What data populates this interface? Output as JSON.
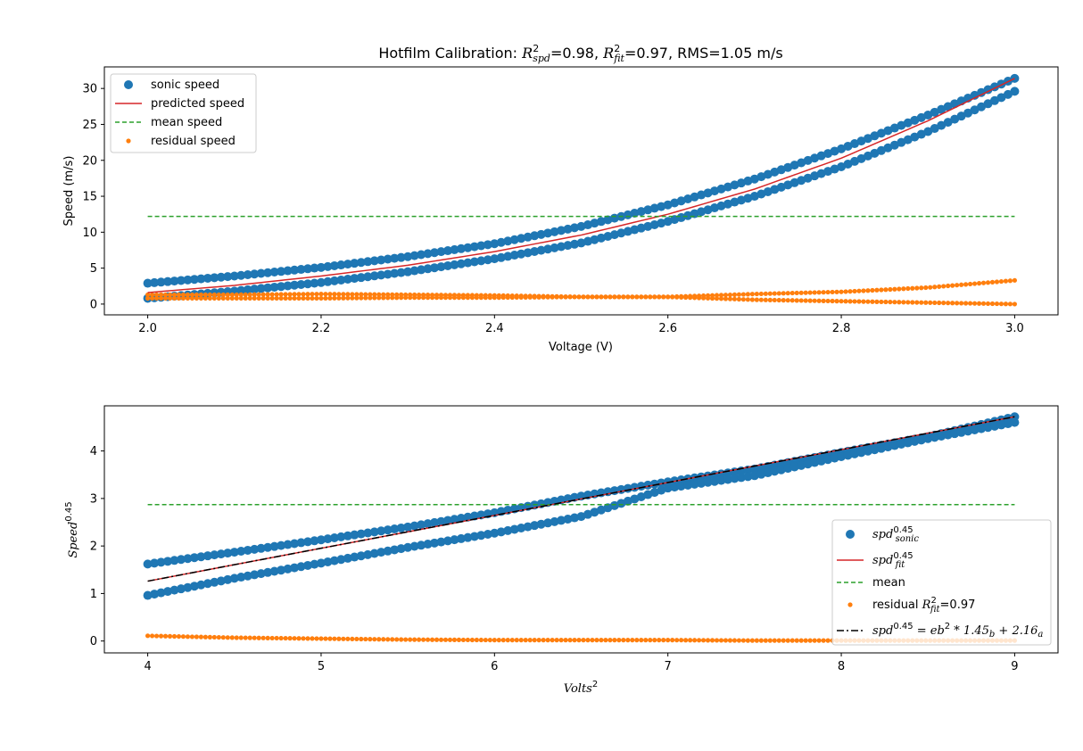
{
  "chart_data": [
    {
      "type": "scatter",
      "title": {
        "prefix": "Hotfilm Calibration: ",
        "r2spd_sym": "R",
        "r2spd_sup": "2",
        "r2spd_sub": "spd",
        "r2spd_val": "=0.98, ",
        "r2fit_sym": "R",
        "r2fit_sup": "2",
        "r2fit_sub": "fit",
        "r2fit_val": "=0.97, RMS=1.05 m/s"
      },
      "xlabel": "Voltage (V)",
      "ylabel": "Speed (m/s)",
      "xlim": [
        1.95,
        3.05
      ],
      "ylim": [
        -1.5,
        33
      ],
      "xticks": [
        2.0,
        2.2,
        2.4,
        2.6,
        2.8,
        3.0
      ],
      "xtick_labels": [
        "2.0",
        "2.2",
        "2.4",
        "2.6",
        "2.8",
        "3.0"
      ],
      "yticks": [
        0,
        5,
        10,
        15,
        20,
        25,
        30
      ],
      "ytick_labels": [
        "0",
        "5",
        "10",
        "15",
        "20",
        "25",
        "30"
      ],
      "legend_position": "top-left",
      "series": [
        {
          "name": "sonic speed",
          "kind": "scatter-large",
          "color": "#1f77b4",
          "branches": [
            {
              "x": [
                2.0,
                2.1,
                2.2,
                2.3,
                2.4,
                2.5,
                2.6,
                2.7,
                2.8,
                2.9,
                3.0
              ],
              "y": [
                2.9,
                3.9,
                5.1,
                6.6,
                8.4,
                10.8,
                13.8,
                17.4,
                21.6,
                26.3,
                31.4
              ]
            },
            {
              "x": [
                2.0,
                2.1,
                2.2,
                2.3,
                2.4,
                2.5,
                2.6,
                2.7,
                2.8,
                2.9,
                3.0
              ],
              "y": [
                0.8,
                1.8,
                3.0,
                4.5,
                6.3,
                8.5,
                11.5,
                15.0,
                19.1,
                24.0,
                29.6
              ]
            }
          ]
        },
        {
          "name": "predicted speed",
          "kind": "line",
          "color": "#d62728",
          "x": [
            2.0,
            2.1,
            2.2,
            2.3,
            2.4,
            2.5,
            2.6,
            2.7,
            2.8,
            2.9,
            3.0
          ],
          "y": [
            1.6,
            2.6,
            3.9,
            5.4,
            7.3,
            9.6,
            12.5,
            16.0,
            20.3,
            25.5,
            31.4
          ]
        },
        {
          "name": "mean speed",
          "kind": "dashed",
          "color": "#2ca02c",
          "x": [
            2.0,
            3.0
          ],
          "y": [
            12.2,
            12.2
          ]
        },
        {
          "name": "residual speed",
          "kind": "scatter-small",
          "color": "#ff7f0e",
          "branches": [
            {
              "x": [
                2.0,
                2.1,
                2.2,
                2.3,
                2.4,
                2.5,
                2.6,
                2.7,
                2.8,
                2.9,
                3.0
              ],
              "y": [
                1.3,
                1.3,
                1.4,
                1.3,
                1.2,
                1.0,
                1.0,
                1.4,
                1.7,
                2.3,
                3.3
              ]
            },
            {
              "x": [
                2.0,
                2.1,
                2.2,
                2.3,
                2.4,
                2.5,
                2.6,
                2.7,
                2.8,
                2.9,
                3.0
              ],
              "y": [
                0.8,
                0.8,
                0.8,
                0.9,
                0.9,
                1.0,
                1.0,
                0.6,
                0.4,
                0.2,
                0.0
              ]
            }
          ]
        }
      ]
    },
    {
      "type": "scatter",
      "xlabel": {
        "sym": "Volts",
        "sup": "2"
      },
      "ylabel": {
        "sym": "Speed",
        "sup": "0.45"
      },
      "xlim": [
        3.75,
        9.25
      ],
      "ylim": [
        -0.25,
        4.95
      ],
      "xticks": [
        4,
        5,
        6,
        7,
        8,
        9
      ],
      "xtick_labels": [
        "4",
        "5",
        "6",
        "7",
        "8",
        "9"
      ],
      "yticks": [
        0,
        1,
        2,
        3,
        4
      ],
      "ytick_labels": [
        "0",
        "1",
        "2",
        "3",
        "4"
      ],
      "legend_position": "lower-right",
      "series": [
        {
          "name": {
            "sym": "spd",
            "sup": "0.45",
            "sub": "sonic"
          },
          "kind": "scatter-large",
          "color": "#1f77b4",
          "branches": [
            {
              "x": [
                4.0,
                4.5,
                5.0,
                5.5,
                6.0,
                6.5,
                7.0,
                7.5,
                8.0,
                8.5,
                9.0
              ],
              "y": [
                1.62,
                1.87,
                2.13,
                2.4,
                2.7,
                3.05,
                3.35,
                3.62,
                3.97,
                4.3,
                4.72
              ]
            },
            {
              "x": [
                4.0,
                4.5,
                5.0,
                5.5,
                6.0,
                6.5,
                7.0,
                7.5,
                8.0,
                8.5,
                9.0
              ],
              "y": [
                0.96,
                1.32,
                1.64,
                1.97,
                2.27,
                2.62,
                3.22,
                3.48,
                3.88,
                4.26,
                4.6
              ]
            }
          ]
        },
        {
          "name": {
            "sym": "spd",
            "sup": "0.45",
            "sub": "fit"
          },
          "kind": "line",
          "color": "#d62728",
          "x": [
            4.0,
            9.0
          ],
          "y": [
            1.26,
            4.72
          ]
        },
        {
          "name": "mean",
          "kind": "dashed",
          "color": "#2ca02c",
          "x": [
            4.0,
            9.0
          ],
          "y": [
            2.87,
            2.87
          ]
        },
        {
          "name": {
            "prefix": "residual ",
            "sym": "R",
            "sup": "2",
            "sub": "fit",
            "suffix": "=0.97"
          },
          "kind": "scatter-small",
          "color": "#ff7f0e",
          "x": [
            4.0,
            4.5,
            5.0,
            5.5,
            6.0,
            6.5,
            7.0,
            7.5,
            8.0,
            8.5,
            9.0
          ],
          "y": [
            0.11,
            0.07,
            0.05,
            0.03,
            0.02,
            0.02,
            0.02,
            0.01,
            0.01,
            0.01,
            0.01
          ]
        },
        {
          "name": {
            "eq": "spd",
            "eq_sup": "0.45",
            "eq_mid": " = eb",
            "eq_sup2": "2",
            "eq_mul": " * 1.45",
            "eq_sub1": "b",
            "eq_plus": " + 2.16",
            "eq_sub2": "a"
          },
          "kind": "dashdot",
          "color": "#000000",
          "x": [
            4.0,
            9.0
          ],
          "y": [
            1.26,
            4.72
          ]
        }
      ]
    }
  ]
}
